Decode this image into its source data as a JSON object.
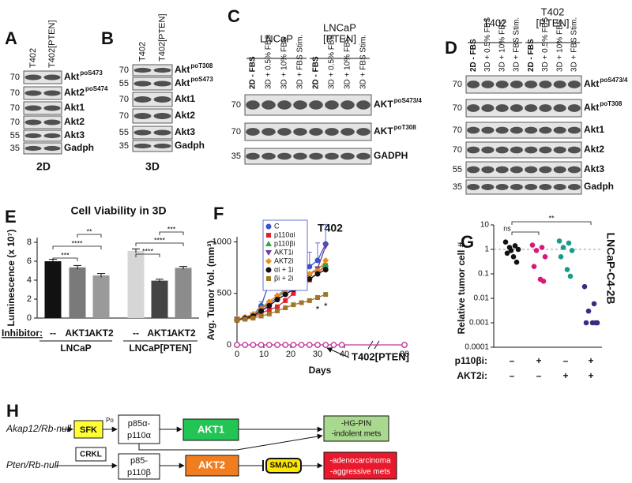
{
  "blots": [
    {
      "panel": "A",
      "lanes": [
        "T402",
        "T402[PTEN]"
      ],
      "footer": "2D",
      "rows": [
        {
          "marker": 70,
          "label": "Akt",
          "sup": "poS473"
        },
        {
          "marker": 70,
          "label": "Akt2",
          "sup": "poS474"
        },
        {
          "marker": 70,
          "label": "Akt1"
        },
        {
          "marker": 70,
          "label": "Akt2"
        },
        {
          "marker": 55,
          "label": "Akt3"
        },
        {
          "marker": 35,
          "label": "Gadph"
        }
      ]
    },
    {
      "panel": "B",
      "lanes": [
        "T402",
        "T402[PTEN]"
      ],
      "footer": "3D",
      "rows": [
        {
          "marker": 70,
          "label": "Akt",
          "sup": "poT308"
        },
        {
          "marker": 55,
          "label": "Akt",
          "sup": "poS473"
        },
        {
          "marker": 70,
          "label": "Akt1"
        },
        {
          "marker": 70,
          "label": "Akt2"
        },
        {
          "marker": 55,
          "label": "Akt3"
        },
        {
          "marker": 35,
          "label": "Gadph"
        }
      ]
    },
    {
      "panel": "C",
      "groups": [
        [
          "LNCaP"
        ],
        [
          "LNCaP",
          "[PTEN]"
        ]
      ],
      "lanes": [
        "2D - FBS",
        "3D + 0.5% FBS",
        "3D + 10% FBS",
        "3D + FBS Stim.",
        "2D - FBS",
        "3D + 0.5% FBS",
        "3D + 10% FBS",
        "3D + FBS Stim."
      ],
      "rows": [
        {
          "marker": 70,
          "label": "AKT",
          "sup": "poS473/4"
        },
        {
          "marker": 70,
          "label": "AKT",
          "sup": "poT308"
        },
        {
          "marker": 35,
          "label": "GADPH"
        }
      ]
    },
    {
      "panel": "D",
      "groups": [
        [
          "T402"
        ],
        [
          "T402",
          "[PTEN]"
        ]
      ],
      "lanes": [
        "2D - FBS",
        "3D + 0.5% FBS",
        "3D + 10% FBS",
        "3D + FBS Stim.",
        "2D - FBS",
        "3D + 0.5% FBS",
        "3D + 10% FBS",
        "3D + FBS Stim."
      ],
      "rows": [
        {
          "marker": 70,
          "label": "Akt",
          "sup": "poS473/4"
        },
        {
          "marker": 70,
          "label": "Akt",
          "sup": "poT308"
        },
        {
          "marker": 70,
          "label": "Akt1"
        },
        {
          "marker": 70,
          "label": "Akt2"
        },
        {
          "marker": 55,
          "label": "Akt3"
        },
        {
          "marker": 35,
          "label": "Gadph"
        }
      ]
    }
  ],
  "chart_data": [
    {
      "type": "bar",
      "panel": "E",
      "title": "Cell Viability in 3D",
      "ylabel": "Luminescence (x 10⁷)",
      "xlabel": "Inhibitor:",
      "ylim": [
        0,
        8.5
      ],
      "yticks": [
        0,
        2,
        4,
        6,
        8
      ],
      "categories": [
        "--",
        "AKT1",
        "AKT2",
        "--",
        "AKT1",
        "AKT2"
      ],
      "groups": [
        "LNCaP",
        "LNCaP[PTEN]"
      ],
      "values": [
        6.0,
        5.35,
        4.5,
        7.1,
        3.95,
        5.3
      ],
      "errors": [
        0.2,
        0.2,
        0.2,
        0.2,
        0.15,
        0.15
      ],
      "colors": [
        "#111111",
        "#7a7a7a",
        "#9a9a9a",
        "#d6d6d6",
        "#444444",
        "#8c8c8c"
      ],
      "significance": [
        "***",
        "****",
        "**",
        "****",
        "****",
        "***"
      ]
    },
    {
      "type": "line",
      "panel": "F",
      "title": "T402",
      "ylabel": "Avg. Tumor Vol. (mm³)",
      "xlabel": "Days",
      "xlim": [
        0,
        80
      ],
      "xbreak": [
        45,
        75
      ],
      "ylim": [
        0,
        1050
      ],
      "xticks": [
        0,
        10,
        20,
        30,
        40,
        80
      ],
      "yticks": [
        0,
        500,
        1000
      ],
      "x": [
        0,
        3,
        6,
        9,
        12,
        15,
        18,
        21,
        24,
        27,
        30,
        33
      ],
      "series": [
        {
          "name": "C",
          "color": "#3a55c8",
          "marker": "circle",
          "values": [
            250,
            260,
            290,
            380,
            600,
            640,
            650,
            700,
            750,
            760,
            820,
            980
          ],
          "errors": [
            10,
            15,
            20,
            40,
            100,
            120,
            130,
            140,
            120,
            140,
            170,
            190
          ]
        },
        {
          "name": "p110αi",
          "color": "#e0202a",
          "marker": "square",
          "values": [
            240,
            250,
            270,
            310,
            340,
            370,
            430,
            500,
            590,
            630,
            700,
            770
          ]
        },
        {
          "name": "p110βi",
          "color": "#2aa84a",
          "marker": "triangle",
          "values": [
            250,
            270,
            300,
            360,
            420,
            480,
            540,
            590,
            640,
            690,
            740,
            780
          ]
        },
        {
          "name": "AKT1i",
          "color": "#6a3fa0",
          "marker": "triangle-down",
          "values": [
            250,
            260,
            290,
            350,
            400,
            460,
            520,
            580,
            630,
            680,
            740,
            960
          ]
        },
        {
          "name": "AKT2i",
          "color": "#f08a1a",
          "marker": "diamond",
          "values": [
            250,
            270,
            300,
            350,
            420,
            480,
            530,
            590,
            640,
            690,
            720,
            820
          ]
        },
        {
          "name": "αi + 1i",
          "color": "#111111",
          "marker": "circle",
          "values": [
            240,
            260,
            280,
            330,
            380,
            440,
            490,
            540,
            590,
            640,
            690,
            730
          ]
        },
        {
          "name": "βi + 2i",
          "color": "#a0762a",
          "marker": "square",
          "values": [
            240,
            250,
            260,
            280,
            300,
            330,
            360,
            390,
            410,
            430,
            460,
            490
          ]
        },
        {
          "name": "T402[PTEN]",
          "color": "#c0379a",
          "marker": "open-circle",
          "legend": false,
          "x": [
            0,
            3,
            6,
            9,
            12,
            15,
            18,
            21,
            24,
            27,
            30,
            33,
            36,
            39,
            80
          ],
          "values": [
            0,
            0,
            0,
            0,
            0,
            0,
            0,
            0,
            0,
            0,
            0,
            0,
            0,
            0,
            0
          ]
        }
      ],
      "annotations": [
        "*",
        "*"
      ]
    },
    {
      "type": "scatter",
      "panel": "G",
      "title": "LNCaP-C4-2B",
      "ylabel": "Relative tumor cell #",
      "log_y": true,
      "ylim": [
        0.0001,
        10
      ],
      "yticks": [
        0.0001,
        0.001,
        0.01,
        0.1,
        1,
        10
      ],
      "series": [
        {
          "color": "#111111",
          "values": [
            2,
            1.4,
            1.2,
            1,
            0.7,
            0.5,
            0.3,
            0.9
          ]
        },
        {
          "color": "#d6197a",
          "values": [
            1.5,
            1.2,
            0.9,
            0.5,
            0.2,
            0.06,
            0.05
          ]
        },
        {
          "color": "#1a9a8a",
          "values": [
            2.2,
            1.8,
            1.2,
            0.9,
            0.5,
            0.15,
            0.08
          ]
        },
        {
          "color": "#3d2a80",
          "values": [
            0.03,
            0.006,
            0.003,
            0.001,
            0.001,
            0.001,
            0.001
          ]
        }
      ],
      "conditions": [
        {
          "label": "p110βi:",
          "values": [
            "–",
            "+",
            "–",
            "+"
          ]
        },
        {
          "label": "AKT2i:",
          "values": [
            "–",
            "–",
            "+",
            "+"
          ]
        }
      ],
      "significance": [
        "ns",
        "**"
      ]
    }
  ],
  "diagram": {
    "panel": "H",
    "rows": [
      {
        "origin": "Akap12/Rb-null",
        "kinase": "SFK",
        "phospho": "Po",
        "pi3k": [
          "p85α-",
          "p110α"
        ],
        "akt": "AKT1",
        "outcome": [
          "-HG-PIN",
          "-indolent mets"
        ]
      },
      {
        "origin": "Pten/Rb-null",
        "kinase": "CRKL",
        "pi3k": [
          "p85-",
          "p110β"
        ],
        "akt": "AKT2",
        "target": "SMAD4",
        "outcome": [
          "-adenocarcinoma",
          "-aggressive mets"
        ]
      }
    ]
  }
}
